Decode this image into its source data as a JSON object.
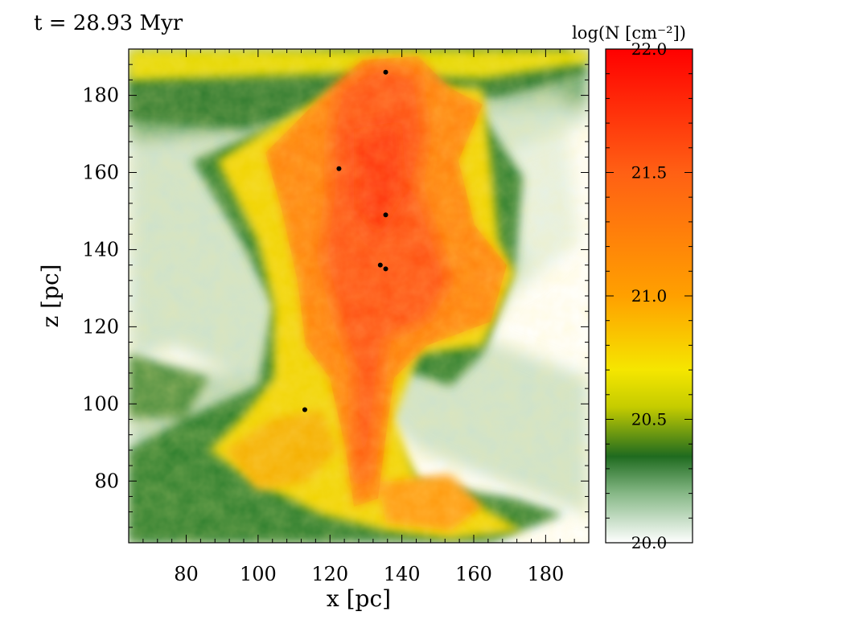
{
  "title": "t = 28.93 Myr",
  "chart_data": {
    "type": "heatmap",
    "title": "t = 28.93 Myr",
    "xlabel": "x [pc]",
    "ylabel": "z [pc]",
    "xlim": [
      64,
      192
    ],
    "ylim": [
      64,
      192
    ],
    "x_ticks": [
      80,
      100,
      120,
      140,
      160,
      180
    ],
    "y_ticks": [
      80,
      100,
      120,
      140,
      160,
      180
    ],
    "colorbar": {
      "label": "log(N [cm⁻²])",
      "range": [
        20.0,
        22.0
      ],
      "ticks": [
        "20.0",
        "20.5",
        "21.0",
        "21.5",
        "22.0"
      ],
      "stops": [
        {
          "value": 20.0,
          "color": "#ffffff"
        },
        {
          "value": 20.2,
          "color": "#86b886"
        },
        {
          "value": 20.35,
          "color": "#1f6b1f"
        },
        {
          "value": 20.55,
          "color": "#c5cc00"
        },
        {
          "value": 20.7,
          "color": "#f5e600"
        },
        {
          "value": 21.0,
          "color": "#ffa000"
        },
        {
          "value": 21.5,
          "color": "#ff6014"
        },
        {
          "value": 22.0,
          "color": "#ff0000"
        }
      ]
    },
    "sink_particles": [
      {
        "x": 135.5,
        "z": 186
      },
      {
        "x": 122.5,
        "z": 161
      },
      {
        "x": 135.5,
        "z": 149
      },
      {
        "x": 134,
        "z": 136
      },
      {
        "x": 135.5,
        "z": 135
      },
      {
        "x": 113,
        "z": 98.5
      }
    ]
  }
}
